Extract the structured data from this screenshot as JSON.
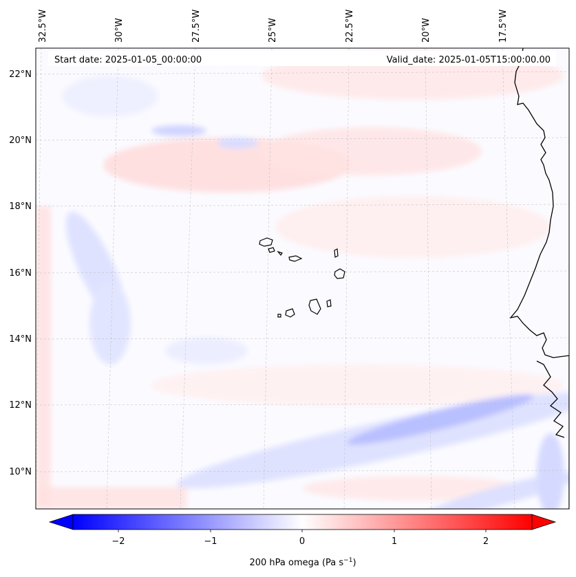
{
  "map": {
    "start_date_label": "Start date: 2025-01-05_00:00:00",
    "valid_date_label": "Valid_date: 2025-01-05T15:00:00.00",
    "lon_labels": [
      "32.5°W",
      "30°W",
      "27.5°W",
      "25°W",
      "22.5°W",
      "20°W",
      "17.5°W"
    ],
    "lat_labels": [
      "22°N",
      "20°N",
      "18°N",
      "16°N",
      "14°N",
      "12°N",
      "10°N"
    ],
    "features": {
      "islands": "Cape Verde Islands",
      "coast": "West African coast"
    }
  },
  "colorbar": {
    "label": "200 hPa omega (Pa s",
    "label_sup": "−1",
    "label_close": ")",
    "ticks": [
      "−2",
      "−1",
      "0",
      "1",
      "2"
    ],
    "range": [
      -2.7,
      2.7
    ],
    "colormap": "bwr",
    "color_low": "#0000ff",
    "color_mid": "#ffffff",
    "color_high": "#ff0000"
  }
}
